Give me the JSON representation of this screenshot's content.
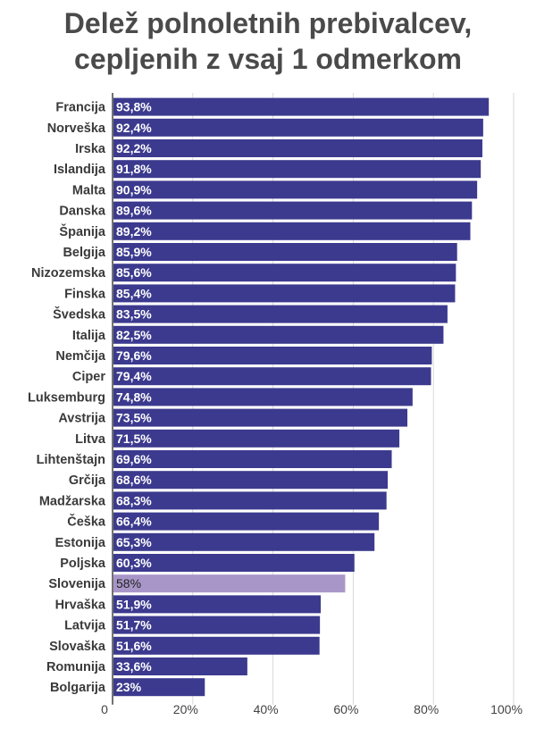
{
  "chart_data": {
    "type": "bar",
    "orientation": "horizontal",
    "title_line1": "Delež polnoletnih prebivalcev,",
    "title_line2": "cepljenih z vsaj 1 odmerkom",
    "xlabel": "",
    "ylabel": "",
    "xlim": [
      0,
      100
    ],
    "ticks": [
      {
        "value": 0,
        "label": "0"
      },
      {
        "value": 20,
        "label": "20%"
      },
      {
        "value": 40,
        "label": "40%"
      },
      {
        "value": 60,
        "label": "60%"
      },
      {
        "value": 80,
        "label": "80%"
      },
      {
        "value": 100,
        "label": "100%"
      }
    ],
    "grid": true,
    "legend": "none",
    "bar_color": "#3c3a8e",
    "highlight_color": "#a996c8",
    "categories": [
      "Francija",
      "Norveška",
      "Irska",
      "Islandija",
      "Malta",
      "Danska",
      "Španija",
      "Belgija",
      "Nizozemska",
      "Finska",
      "Švedska",
      "Italija",
      "Nemčija",
      "Ciper",
      "Luksemburg",
      "Avstrija",
      "Litva",
      "Lihtenštajn",
      "Grčija",
      "Madžarska",
      "Češka",
      "Estonija",
      "Poljska",
      "Slovenija",
      "Hrvaška",
      "Latvija",
      "Slovaška",
      "Romunija",
      "Bolgarija"
    ],
    "values": [
      93.8,
      92.4,
      92.2,
      91.8,
      90.9,
      89.6,
      89.2,
      85.9,
      85.6,
      85.4,
      83.5,
      82.5,
      79.6,
      79.4,
      74.8,
      73.5,
      71.5,
      69.6,
      68.6,
      68.3,
      66.4,
      65.3,
      60.3,
      58,
      51.9,
      51.7,
      51.6,
      33.6,
      23
    ],
    "value_labels": [
      "93,8%",
      "92,4%",
      "92,2%",
      "91,8%",
      "90,9%",
      "89,6%",
      "89,2%",
      "85,9%",
      "85,6%",
      "85,4%",
      "83,5%",
      "82,5%",
      "79,6%",
      "79,4%",
      "74,8%",
      "73,5%",
      "71,5%",
      "69,6%",
      "68,6%",
      "68,3%",
      "66,4%",
      "65,3%",
      "60,3%",
      "58%",
      "51,9%",
      "51,7%",
      "51,6%",
      "33,6%",
      "23%"
    ],
    "highlight_category": "Slovenija"
  }
}
